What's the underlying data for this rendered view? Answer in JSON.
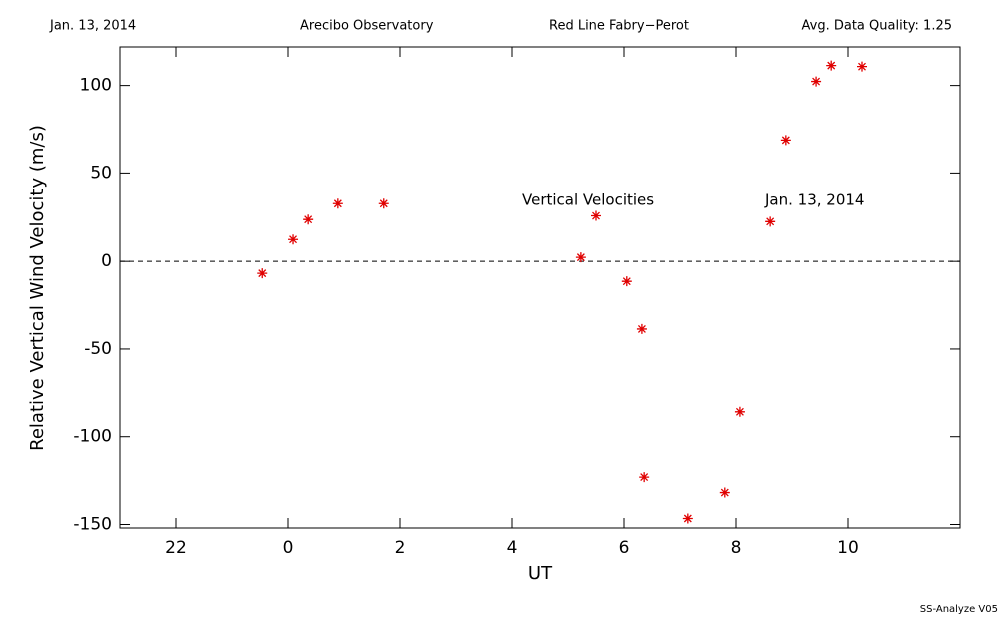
{
  "chart_data": {
    "type": "scatter",
    "header": [
      "Jan. 13, 2014",
      "Arecibo Observatory",
      "Red Line Fabry−Perot",
      "Avg. Data Quality: 1.25"
    ],
    "xlabel": "UT",
    "ylabel": "Relative Vertical Wind Velocity (m/s)",
    "annotations": [
      "Vertical Velocities",
      "Jan. 13, 2014"
    ],
    "footer": "SS-Analyze V05",
    "xlim": [
      -3,
      12
    ],
    "xticks": [
      {
        "value": -2,
        "label": "22"
      },
      0,
      2,
      4,
      6,
      8,
      10
    ],
    "ylim": [
      -152,
      122
    ],
    "yticks": [
      -150,
      -100,
      -50,
      0,
      50,
      100
    ],
    "reference_line": 0,
    "color": "#e00000",
    "x": [
      -0.46,
      0.09,
      0.36,
      0.89,
      1.71,
      5.23,
      5.5,
      6.05,
      6.32,
      6.36,
      7.14,
      7.8,
      8.07,
      8.61,
      8.89,
      9.43,
      9.7,
      10.25
    ],
    "values": [
      -6.8,
      12.5,
      23.9,
      33,
      33,
      2.3,
      26,
      -11.4,
      -38.6,
      -123,
      -146.6,
      -131.8,
      -85.8,
      22.7,
      68.8,
      102.3,
      111.4,
      110.8
    ]
  }
}
